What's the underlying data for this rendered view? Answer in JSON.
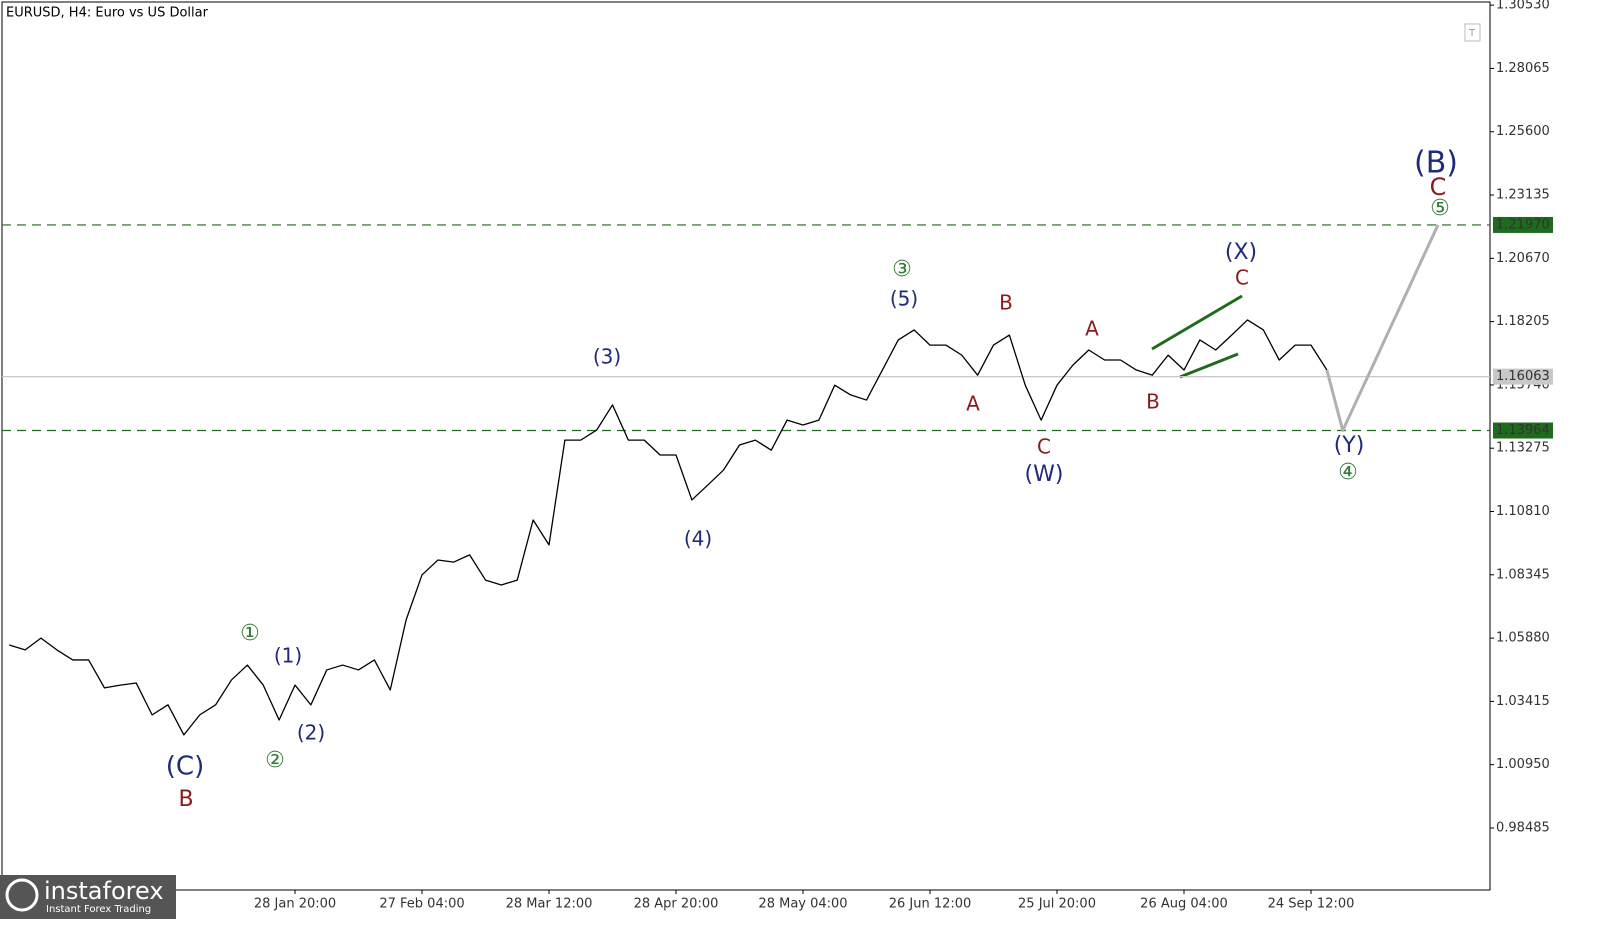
{
  "chart_data": {
    "type": "line",
    "title": "EURUSD, H4:  Euro vs US Dollar",
    "watermark": {
      "brand": "instaforex",
      "tagline": "Instant Forex Trading"
    },
    "categories": [
      null,
      null,
      null,
      null,
      null,
      null,
      null,
      null,
      null,
      null,
      null,
      null,
      null,
      null,
      null,
      null,
      null,
      null,
      "28 Jan 20:00",
      null,
      null,
      null,
      null,
      null,
      null,
      null,
      "27 Feb 04:00",
      null,
      null,
      null,
      null,
      null,
      null,
      null,
      "28 Mar 12:00",
      null,
      null,
      null,
      null,
      null,
      null,
      null,
      "28 Apr 20:00",
      null,
      null,
      null,
      null,
      null,
      null,
      null,
      "28 May 04:00",
      null,
      null,
      null,
      null,
      null,
      null,
      null,
      "26 Jun 12:00",
      null,
      null,
      null,
      null,
      null,
      null,
      null,
      "25 Jul 20:00",
      null,
      null,
      null,
      null,
      null,
      null,
      null,
      "26 Aug 04:00",
      null,
      null,
      null,
      null,
      null,
      null,
      null,
      "24 Sep 12:00",
      null,
      null,
      null,
      null,
      null,
      null,
      null,
      null
    ],
    "series": [
      {
        "color": "#000000",
        "values": [
          1.0561,
          1.0542,
          1.0588,
          1.0542,
          1.0503,
          1.0503,
          1.0394,
          1.0405,
          1.0413,
          1.0289,
          1.0328,
          1.0211,
          1.0289,
          1.0328,
          1.0425,
          1.0483,
          1.0405,
          1.0269,
          1.0405,
          1.0328,
          1.0464,
          1.0483,
          1.0464,
          1.0503,
          1.0386,
          1.0659,
          1.0834,
          1.0892,
          1.0884,
          1.0912,
          1.0814,
          1.0795,
          1.0814,
          1.1048,
          1.0951,
          1.1359,
          1.1359,
          1.1398,
          1.1496,
          1.1359,
          1.1359,
          1.1301,
          1.1301,
          1.1126,
          1.1184,
          1.1243,
          1.134,
          1.1359,
          1.132,
          1.1437,
          1.1418,
          1.1437,
          1.1573,
          1.1535,
          1.1515,
          1.1632,
          1.1749,
          1.1788,
          1.1729,
          1.1729,
          1.169,
          1.1612,
          1.1729,
          1.1768,
          1.1573,
          1.1437,
          1.1573,
          1.1651,
          1.171,
          1.1671,
          1.1671,
          1.1632,
          1.1612,
          1.169,
          1.1632,
          1.1749,
          1.171,
          1.1768,
          1.1827,
          1.1788,
          1.1671,
          1.1729,
          1.1729,
          1.1632,
          null,
          null,
          null,
          null,
          null,
          null,
          null
        ]
      },
      {
        "color": "#b0b0b0",
        "values": [
          null,
          null,
          null,
          null,
          null,
          null,
          null,
          null,
          null,
          null,
          null,
          null,
          null,
          null,
          null,
          null,
          null,
          null,
          null,
          null,
          null,
          null,
          null,
          null,
          null,
          null,
          null,
          null,
          null,
          null,
          null,
          null,
          null,
          null,
          null,
          null,
          null,
          null,
          null,
          null,
          null,
          null,
          null,
          null,
          null,
          null,
          null,
          null,
          null,
          null,
          null,
          null,
          null,
          null,
          null,
          null,
          null,
          null,
          null,
          null,
          null,
          null,
          null,
          null,
          null,
          null,
          null,
          null,
          null,
          null,
          null,
          null,
          null,
          null,
          null,
          null,
          null,
          null,
          null,
          null,
          null,
          null,
          null,
          1.1632,
          1.13964,
          1.153,
          1.1663,
          1.1797,
          1.193,
          1.2064,
          1.2197
        ]
      }
    ],
    "ylim": [
      0.9607,
      1.3073
    ],
    "yticks": [
      {
        "value": 1.3053,
        "label": "1.30530"
      },
      {
        "value": 1.28065,
        "label": "1.28065"
      },
      {
        "value": 1.256,
        "label": "1.25600"
      },
      {
        "value": 1.23135,
        "label": "1.23135"
      },
      {
        "value": 1.2067,
        "label": "1.20670"
      },
      {
        "value": 1.18205,
        "label": "1.18205"
      },
      {
        "value": 1.1574,
        "label": "1.15740"
      },
      {
        "value": 1.13275,
        "label": "1.13275"
      },
      {
        "value": 1.1081,
        "label": "1.10810"
      },
      {
        "value": 1.08345,
        "label": "1.08345"
      },
      {
        "value": 1.0588,
        "label": "1.05880"
      },
      {
        "value": 1.03415,
        "label": "1.03415"
      },
      {
        "value": 1.0095,
        "label": "1.00950"
      },
      {
        "value": 0.98485,
        "label": "0.98485"
      }
    ],
    "levels": [
      {
        "value": 1.2197,
        "label": "1.21970",
        "color": "#1e6b1e",
        "dashed": true
      },
      {
        "value": 1.13964,
        "label": "1.13964",
        "color": "#1e6b1e",
        "dashed": true
      },
      {
        "value": 1.16063,
        "label": "1.16063",
        "color": "#c8c8c8",
        "dashed": false
      }
    ],
    "annotations": [
      {
        "text": "(C)",
        "color": "#1f2a7a"
      },
      {
        "text": "B",
        "color": "#8b1a1a"
      },
      {
        "text": "①",
        "color": "#2e7d32"
      },
      {
        "text": "(1)",
        "color": "#1f2a7a"
      },
      {
        "text": "②",
        "color": "#2e7d32"
      },
      {
        "text": "(2)",
        "color": "#1f2a7a"
      },
      {
        "text": "(3)",
        "color": "#1f2a7a"
      },
      {
        "text": "(4)",
        "color": "#1f2a7a"
      },
      {
        "text": "③",
        "color": "#2e7d32"
      },
      {
        "text": "(5)",
        "color": "#1f2a7a"
      },
      {
        "text": "B",
        "color": "#8b1a1a"
      },
      {
        "text": "A",
        "color": "#8b1a1a"
      },
      {
        "text": "C",
        "color": "#8b1a1a"
      },
      {
        "text": "(W)",
        "color": "#1f2a7a"
      },
      {
        "text": "A",
        "color": "#8b1a1a"
      },
      {
        "text": "B",
        "color": "#8b1a1a"
      },
      {
        "text": "(X)",
        "color": "#1f2a7a"
      },
      {
        "text": "C",
        "color": "#8b1a1a"
      },
      {
        "text": "(Y)",
        "color": "#1f2a7a"
      },
      {
        "text": "④",
        "color": "#2e7d32"
      },
      {
        "text": "(B)",
        "color": "#1f2a7a"
      },
      {
        "text": "C",
        "color": "#8b1a1a"
      },
      {
        "text": "⑤",
        "color": "#2e7d32"
      }
    ]
  }
}
